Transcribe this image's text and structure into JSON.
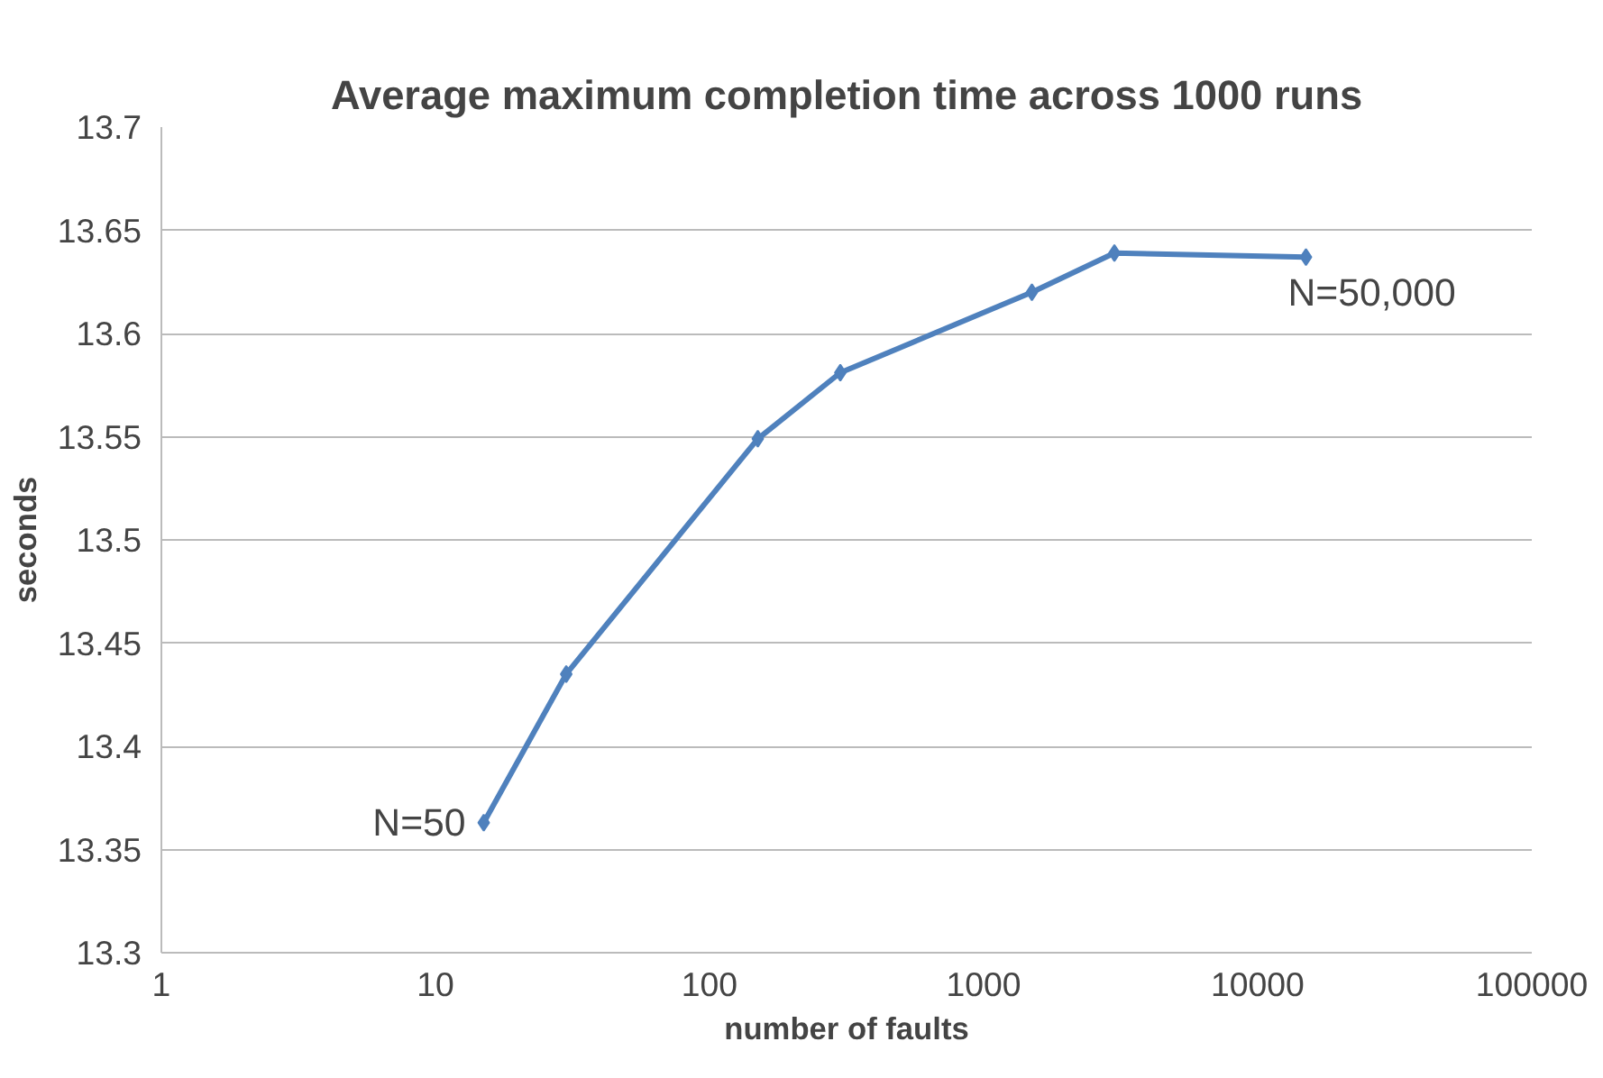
{
  "chart_data": {
    "type": "line",
    "title": "Average maximum completion time across 1000 runs",
    "xlabel": "number of faults",
    "ylabel": "seconds",
    "x": [
      15,
      30,
      150,
      300,
      1500,
      3000,
      15000
    ],
    "series": [
      {
        "color": "#4f81bd",
        "values": [
          13.363,
          13.435,
          13.549,
          13.581,
          13.62,
          13.639,
          13.637
        ]
      }
    ],
    "log": "x",
    "xlim": [
      1,
      100000
    ],
    "xticks": [
      1,
      10,
      100,
      1000,
      10000,
      100000
    ],
    "ylim": [
      13.3,
      13.7
    ],
    "yticks": [
      13.3,
      13.35,
      13.4,
      13.45,
      13.5,
      13.55,
      13.6,
      13.65,
      13.7
    ],
    "grid": "y",
    "marker": "diamond",
    "line_style": "solid",
    "annotations": [
      {
        "text": "N=50",
        "x": 15,
        "y": 13.363
      },
      {
        "text": "N=50,000",
        "x": 15000,
        "y": 13.637
      }
    ]
  }
}
